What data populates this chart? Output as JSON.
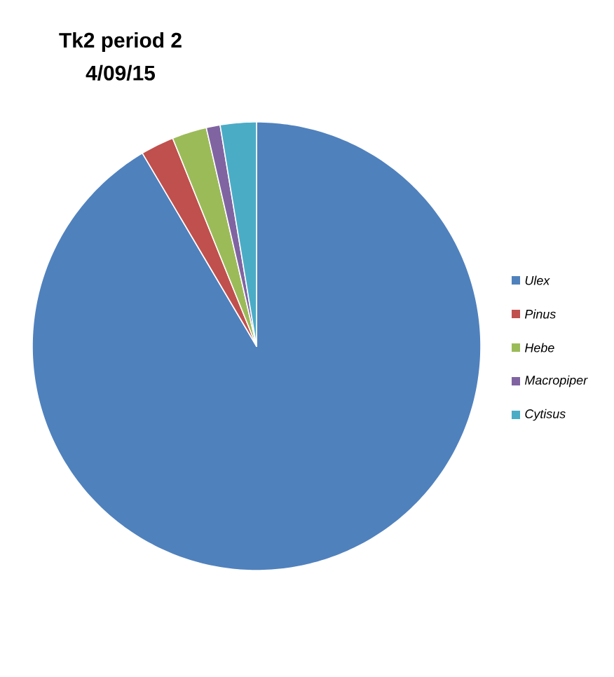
{
  "chart_data": {
    "type": "pie",
    "title": "Tk2 period 2",
    "subtitle": "4/09/15",
    "categories": [
      "Ulex",
      "Pinus",
      "Hebe",
      "Macropiper",
      "Cytisus"
    ],
    "values": [
      91.5,
      2.4,
      2.5,
      1.0,
      2.6
    ],
    "colors": [
      "#4f81bd",
      "#c0504d",
      "#9bbb59",
      "#8064a2",
      "#4bacc6"
    ],
    "legend": "right"
  }
}
